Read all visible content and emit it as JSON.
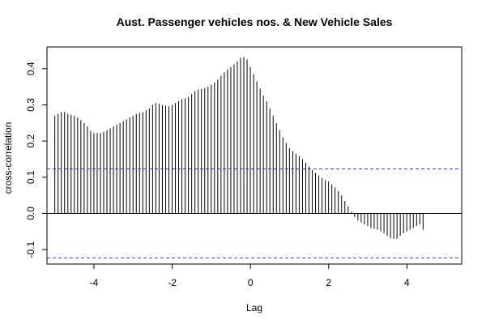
{
  "chart_data": {
    "type": "bar",
    "title": "Aust. Passenger vehicles nos. & New Vehicle Sales",
    "xlabel": "Lag",
    "ylabel": "cross-correlation",
    "xlim": [
      -5.2,
      5.4
    ],
    "ylim": [
      -0.14,
      0.46
    ],
    "x_ticks": [
      -4,
      -2,
      0,
      2,
      4
    ],
    "x_tick_labels": [
      "-4",
      "-2",
      "0",
      "2",
      "4"
    ],
    "y_ticks": [
      -0.1,
      0.0,
      0.1,
      0.2,
      0.3,
      0.4
    ],
    "y_tick_labels": [
      "-0.1",
      "0.0",
      "0.1",
      "0.2",
      "0.3",
      "0.4"
    ],
    "confidence_limits": [
      0.123,
      -0.123
    ],
    "colors": {
      "bars": "#000000",
      "confidence": "#3a3ad0",
      "zero_line": "#000000"
    },
    "lag_start": -5.0,
    "lag_step": 0.0833,
    "values": [
      0.27,
      0.275,
      0.28,
      0.28,
      0.275,
      0.272,
      0.27,
      0.265,
      0.258,
      0.25,
      0.24,
      0.228,
      0.222,
      0.222,
      0.222,
      0.225,
      0.23,
      0.235,
      0.24,
      0.245,
      0.25,
      0.255,
      0.26,
      0.265,
      0.27,
      0.275,
      0.278,
      0.28,
      0.285,
      0.29,
      0.3,
      0.305,
      0.303,
      0.3,
      0.298,
      0.296,
      0.3,
      0.305,
      0.31,
      0.315,
      0.318,
      0.322,
      0.33,
      0.338,
      0.342,
      0.344,
      0.346,
      0.35,
      0.355,
      0.362,
      0.37,
      0.38,
      0.39,
      0.398,
      0.405,
      0.412,
      0.42,
      0.43,
      0.432,
      0.425,
      0.405,
      0.385,
      0.365,
      0.345,
      0.325,
      0.31,
      0.29,
      0.27,
      0.25,
      0.23,
      0.21,
      0.195,
      0.18,
      0.172,
      0.165,
      0.158,
      0.15,
      0.14,
      0.13,
      0.12,
      0.112,
      0.105,
      0.098,
      0.092,
      0.088,
      0.08,
      0.072,
      0.062,
      0.05,
      0.035,
      0.02,
      0.005,
      -0.01,
      -0.02,
      -0.025,
      -0.03,
      -0.035,
      -0.04,
      -0.042,
      -0.045,
      -0.05,
      -0.055,
      -0.062,
      -0.068,
      -0.07,
      -0.07,
      -0.062,
      -0.055,
      -0.05,
      -0.045,
      -0.04,
      -0.035,
      -0.03,
      -0.045
    ]
  }
}
